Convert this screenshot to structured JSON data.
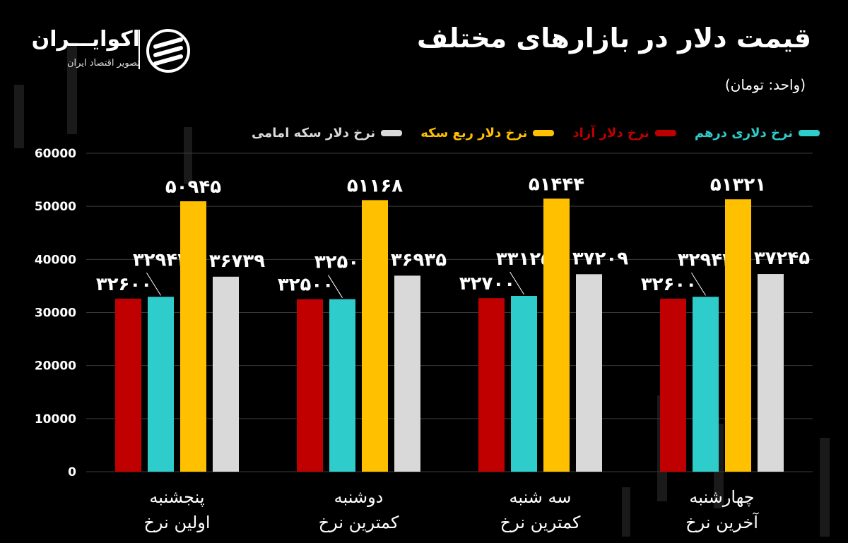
{
  "title": "قیمت دلار در بازارهای مختلف",
  "unit": "(واحد: تومان)",
  "logo": {
    "name": "اکوایـــران",
    "tagline": "تصویر اقتصاد ایران"
  },
  "colors": {
    "background": "#000000",
    "red": "#C00000",
    "teal": "#2ECDCB",
    "yellow": "#FFC000",
    "gray": "#D9D9D9"
  },
  "chart_data": {
    "type": "bar",
    "ylim": [
      0,
      60000
    ],
    "yticks": [
      0,
      10000,
      20000,
      30000,
      40000,
      50000,
      60000
    ],
    "ytick_labels": [
      "0",
      "10000",
      "20000",
      "30000",
      "40000",
      "50000",
      "60000"
    ],
    "legend_position": "top-right",
    "categories": [
      {
        "line1": "پنجشنبه",
        "line2": "اولین نرخ"
      },
      {
        "line1": "دوشنبه",
        "line2": "کمترین نرخ"
      },
      {
        "line1": "سه شنبه",
        "line2": "کمترین  نرخ"
      },
      {
        "line1": "چهارشنبه",
        "line2": "آخرین  نرخ"
      }
    ],
    "series": [
      {
        "name": "نرخ دلار آزاد",
        "color": "#C00000",
        "values": [
          32600,
          32500,
          32700,
          32600
        ],
        "labels": [
          "۳۲۶۰۰",
          "۳۲۵۰۰",
          "۳۲۷۰۰",
          "۳۲۶۰۰"
        ]
      },
      {
        "name": "نرخ دلاری درهم",
        "color": "#2ECDCB",
        "values": [
          32942,
          32501,
          33125,
          32942
        ],
        "labels": [
          "۳۲۹۴۲",
          "۳۲۵۰۱",
          "۳۳۱۲۵",
          "۳۲۹۴۲"
        ]
      },
      {
        "name": "نرخ دلار ربع سکه",
        "color": "#FFC000",
        "values": [
          50945,
          51168,
          51444,
          51321
        ],
        "labels": [
          "۵۰۹۴۵",
          "۵۱۱۶۸",
          "۵۱۴۴۴",
          "۵۱۳۲۱"
        ]
      },
      {
        "name": "نرخ دلار سکه امامی",
        "color": "#D9D9D9",
        "values": [
          36739,
          36935,
          37209,
          37245
        ],
        "labels": [
          "۳۶۷۳۹",
          "۳۶۹۳۵",
          "۳۷۲۰۹",
          "۳۷۲۴۵"
        ]
      }
    ],
    "legend_order": [
      1,
      0,
      2,
      3
    ]
  }
}
